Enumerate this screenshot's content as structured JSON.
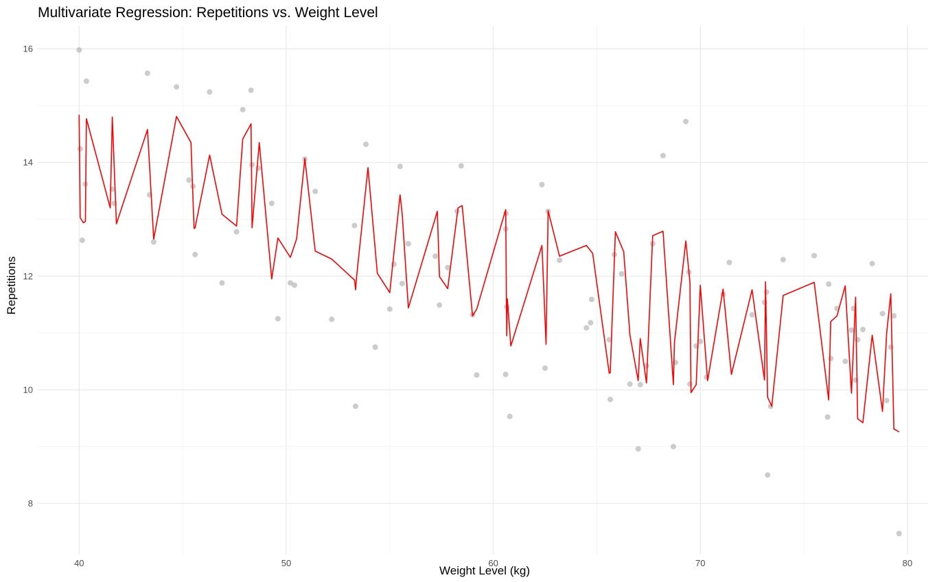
{
  "chart_data": {
    "type": "scatter",
    "title": "Multivariate Regression: Repetitions vs. Weight Level",
    "xlabel": "Weight Level (kg)",
    "ylabel": "Repetitions",
    "xlim": [
      38.0,
      81.0
    ],
    "ylim": [
      7.1,
      16.4
    ],
    "x_ticks": [
      40,
      50,
      60,
      70,
      80
    ],
    "y_ticks": [
      8,
      10,
      12,
      14,
      16
    ],
    "grid": true,
    "point_color": "#999999",
    "line_color": "#ff0000",
    "points": [
      [
        40.0,
        15.98
      ],
      [
        40.05,
        14.24
      ],
      [
        40.15,
        12.63
      ],
      [
        40.3,
        13.62
      ],
      [
        40.35,
        15.43
      ],
      [
        41.6,
        13.53
      ],
      [
        41.7,
        13.28
      ],
      [
        43.3,
        15.57
      ],
      [
        43.4,
        13.43
      ],
      [
        43.6,
        12.6
      ],
      [
        44.7,
        15.33
      ],
      [
        45.3,
        13.69
      ],
      [
        45.5,
        13.58
      ],
      [
        45.6,
        12.38
      ],
      [
        46.3,
        15.24
      ],
      [
        46.9,
        11.88
      ],
      [
        47.6,
        12.78
      ],
      [
        47.9,
        14.93
      ],
      [
        48.3,
        15.27
      ],
      [
        48.35,
        13.96
      ],
      [
        48.65,
        13.9
      ],
      [
        49.3,
        13.28
      ],
      [
        49.6,
        11.25
      ],
      [
        50.2,
        11.88
      ],
      [
        50.4,
        11.84
      ],
      [
        50.9,
        14.06
      ],
      [
        51.4,
        13.49
      ],
      [
        52.2,
        11.24
      ],
      [
        53.3,
        12.89
      ],
      [
        53.35,
        9.71
      ],
      [
        53.85,
        14.32
      ],
      [
        54.3,
        10.75
      ],
      [
        55.0,
        11.42
      ],
      [
        55.2,
        12.21
      ],
      [
        55.5,
        13.93
      ],
      [
        55.6,
        11.87
      ],
      [
        55.9,
        12.57
      ],
      [
        57.2,
        12.35
      ],
      [
        57.4,
        11.49
      ],
      [
        57.8,
        12.15
      ],
      [
        58.25,
        13.14
      ],
      [
        58.45,
        13.94
      ],
      [
        59.0,
        11.32
      ],
      [
        59.2,
        10.26
      ],
      [
        60.6,
        12.83
      ],
      [
        60.62,
        13.1
      ],
      [
        60.65,
        11.46
      ],
      [
        60.6,
        10.27
      ],
      [
        60.8,
        9.53
      ],
      [
        62.35,
        13.61
      ],
      [
        62.5,
        10.38
      ],
      [
        62.65,
        13.14
      ],
      [
        63.2,
        12.28
      ],
      [
        64.5,
        11.09
      ],
      [
        64.7,
        11.18
      ],
      [
        64.75,
        11.59
      ],
      [
        65.6,
        10.88
      ],
      [
        65.65,
        9.83
      ],
      [
        65.85,
        12.38
      ],
      [
        66.2,
        12.04
      ],
      [
        66.6,
        10.1
      ],
      [
        67.0,
        8.96
      ],
      [
        67.1,
        10.09
      ],
      [
        67.4,
        10.42
      ],
      [
        67.7,
        12.57
      ],
      [
        68.2,
        14.12
      ],
      [
        68.7,
        9.0
      ],
      [
        68.8,
        10.48
      ],
      [
        69.3,
        14.72
      ],
      [
        69.45,
        12.07
      ],
      [
        69.5,
        10.1
      ],
      [
        69.8,
        10.77
      ],
      [
        70.0,
        10.85
      ],
      [
        70.3,
        10.22
      ],
      [
        71.1,
        11.68
      ],
      [
        71.4,
        12.24
      ],
      [
        72.5,
        11.32
      ],
      [
        73.1,
        11.54
      ],
      [
        73.25,
        8.5
      ],
      [
        73.2,
        11.72
      ],
      [
        73.4,
        9.71
      ],
      [
        74.0,
        12.29
      ],
      [
        75.5,
        12.36
      ],
      [
        76.15,
        9.52
      ],
      [
        76.2,
        11.86
      ],
      [
        76.3,
        10.55
      ],
      [
        76.6,
        11.43
      ],
      [
        77.0,
        10.5
      ],
      [
        77.3,
        11.05
      ],
      [
        77.4,
        11.43
      ],
      [
        77.5,
        10.17
      ],
      [
        77.6,
        10.88
      ],
      [
        77.85,
        11.06
      ],
      [
        78.3,
        12.22
      ],
      [
        78.8,
        11.34
      ],
      [
        79.0,
        9.81
      ],
      [
        79.2,
        10.75
      ],
      [
        79.35,
        11.3
      ],
      [
        79.6,
        7.47
      ]
    ],
    "fitted_line": [
      [
        40.0,
        14.84
      ],
      [
        40.05,
        13.03
      ],
      [
        40.2,
        12.94
      ],
      [
        40.3,
        12.96
      ],
      [
        40.35,
        14.77
      ],
      [
        41.5,
        13.2
      ],
      [
        41.6,
        14.8
      ],
      [
        41.8,
        12.92
      ],
      [
        43.3,
        14.58
      ],
      [
        43.6,
        12.65
      ],
      [
        44.7,
        14.81
      ],
      [
        45.4,
        14.35
      ],
      [
        45.55,
        12.84
      ],
      [
        45.6,
        12.85
      ],
      [
        46.3,
        14.13
      ],
      [
        46.9,
        13.09
      ],
      [
        47.6,
        12.88
      ],
      [
        47.9,
        14.41
      ],
      [
        48.3,
        14.68
      ],
      [
        48.35,
        12.85
      ],
      [
        48.7,
        14.35
      ],
      [
        49.3,
        11.95
      ],
      [
        49.6,
        12.67
      ],
      [
        50.2,
        12.33
      ],
      [
        50.5,
        12.65
      ],
      [
        50.9,
        14.07
      ],
      [
        51.4,
        12.44
      ],
      [
        52.2,
        12.3
      ],
      [
        53.3,
        11.93
      ],
      [
        53.35,
        11.76
      ],
      [
        53.4,
        11.99
      ],
      [
        53.95,
        13.91
      ],
      [
        54.4,
        12.05
      ],
      [
        55.0,
        11.71
      ],
      [
        55.5,
        13.43
      ],
      [
        55.6,
        13.1
      ],
      [
        55.9,
        11.44
      ],
      [
        57.3,
        13.14
      ],
      [
        57.4,
        11.99
      ],
      [
        57.8,
        11.78
      ],
      [
        58.3,
        13.2
      ],
      [
        58.5,
        13.24
      ],
      [
        59.0,
        11.3
      ],
      [
        59.2,
        11.42
      ],
      [
        60.6,
        13.17
      ],
      [
        60.65,
        10.95
      ],
      [
        60.68,
        11.6
      ],
      [
        60.85,
        10.77
      ],
      [
        62.35,
        12.54
      ],
      [
        62.55,
        10.8
      ],
      [
        62.65,
        13.15
      ],
      [
        63.2,
        12.35
      ],
      [
        64.5,
        12.54
      ],
      [
        64.8,
        12.4
      ],
      [
        65.6,
        10.29
      ],
      [
        65.65,
        10.3
      ],
      [
        65.9,
        12.78
      ],
      [
        66.3,
        12.43
      ],
      [
        66.6,
        10.96
      ],
      [
        67.0,
        10.16
      ],
      [
        67.1,
        10.9
      ],
      [
        67.4,
        10.12
      ],
      [
        67.7,
        12.71
      ],
      [
        68.2,
        12.79
      ],
      [
        68.7,
        10.09
      ],
      [
        68.75,
        10.83
      ],
      [
        69.3,
        12.62
      ],
      [
        69.5,
        11.89
      ],
      [
        69.55,
        9.95
      ],
      [
        69.8,
        10.09
      ],
      [
        70.0,
        11.84
      ],
      [
        70.35,
        10.16
      ],
      [
        71.1,
        11.77
      ],
      [
        71.5,
        10.27
      ],
      [
        72.5,
        11.76
      ],
      [
        73.1,
        10.17
      ],
      [
        73.15,
        11.9
      ],
      [
        73.25,
        9.87
      ],
      [
        73.45,
        9.71
      ],
      [
        74.0,
        11.66
      ],
      [
        75.5,
        11.89
      ],
      [
        76.2,
        9.82
      ],
      [
        76.3,
        11.2
      ],
      [
        76.6,
        11.3
      ],
      [
        77.0,
        11.83
      ],
      [
        77.3,
        9.94
      ],
      [
        77.5,
        11.63
      ],
      [
        77.6,
        9.49
      ],
      [
        77.85,
        9.42
      ],
      [
        78.3,
        10.96
      ],
      [
        78.8,
        9.62
      ],
      [
        79.0,
        11.0
      ],
      [
        79.2,
        11.69
      ],
      [
        79.35,
        9.31
      ],
      [
        79.6,
        9.26
      ]
    ]
  }
}
